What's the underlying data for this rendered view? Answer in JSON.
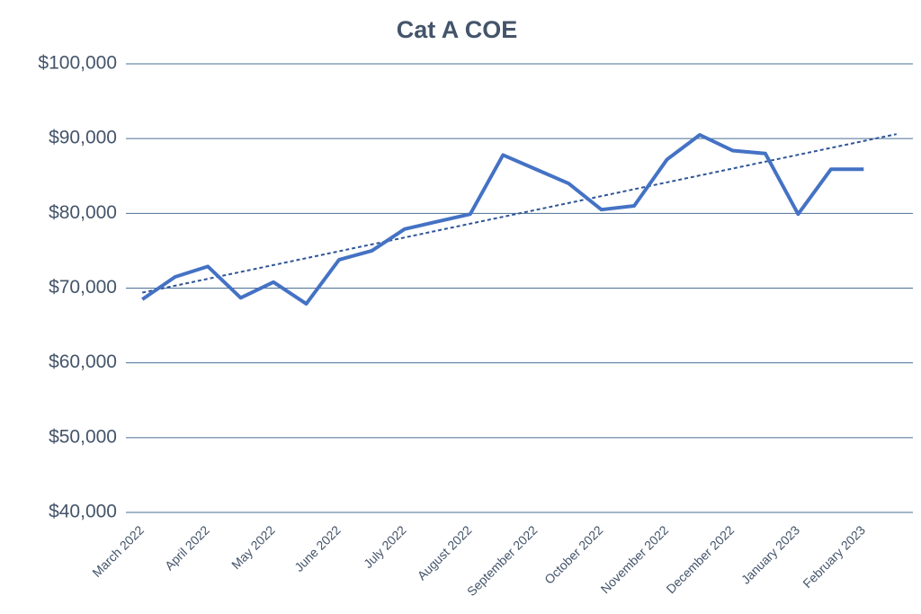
{
  "chart_data": {
    "type": "line",
    "title": "Cat A COE",
    "categories": [
      "March 2022",
      null,
      "April 2022",
      null,
      "May 2022",
      null,
      "June 2022",
      null,
      "July 2022",
      null,
      "August 2022",
      null,
      "September 2022",
      null,
      "October 2022",
      null,
      "November 2022",
      null,
      "December 2022",
      null,
      "January 2023",
      null,
      "February 2023"
    ],
    "series": [
      {
        "color": "#4472c4",
        "values": [
          68500,
          71500,
          72900,
          68700,
          70800,
          67900,
          73800,
          75000,
          77900,
          78900,
          79900,
          87800,
          85900,
          84000,
          80500,
          81000,
          87200,
          90500,
          88400,
          88000,
          79900,
          85900,
          85900
        ]
      }
    ],
    "trendline": {
      "color": "#2f5597",
      "style": "dashed",
      "start": 69400,
      "end": 90600,
      "forward": 1
    },
    "ylim": [
      40000,
      100000
    ],
    "yticks": [
      {
        "value": 40000,
        "label": "$40,000"
      },
      {
        "value": 50000,
        "label": "$50,000"
      },
      {
        "value": 60000,
        "label": "$60,000"
      },
      {
        "value": 70000,
        "label": "$70,000"
      },
      {
        "value": 80000,
        "label": "$80,000"
      },
      {
        "value": 90000,
        "label": "$90,000"
      },
      {
        "value": 100000,
        "label": "$100,000"
      }
    ],
    "grid": true
  }
}
